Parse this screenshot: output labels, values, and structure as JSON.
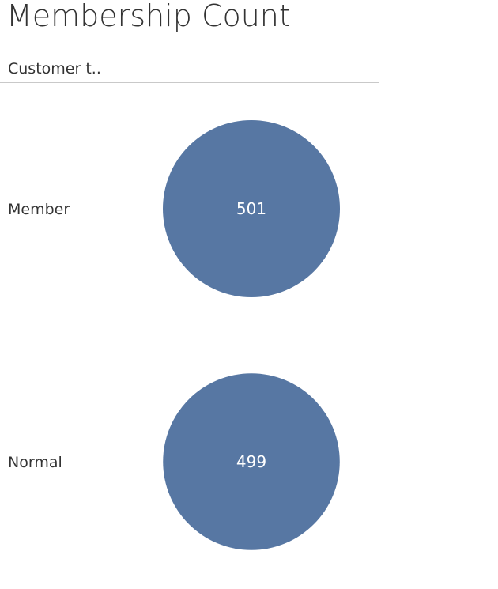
{
  "chart_data": {
    "type": "scatter",
    "mark": "circle",
    "title": "Membership Count",
    "row_header": "Customer t..",
    "categories": [
      "Member",
      "Normal"
    ],
    "values": [
      501,
      499
    ],
    "color": "#5777a3",
    "label_color": "#ffffff"
  }
}
